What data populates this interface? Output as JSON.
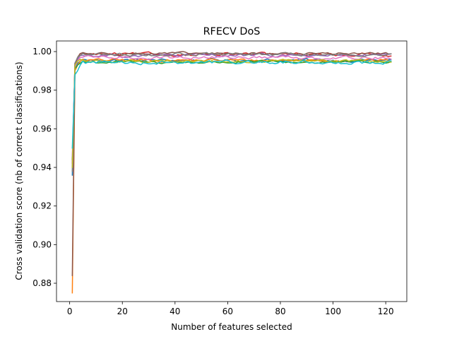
{
  "chart_data": {
    "type": "line",
    "title": "RFECV DoS",
    "xlabel": "Number of features selected",
    "ylabel": "Cross validation score (nb of correct classifications)",
    "xlim": [
      -5,
      128
    ],
    "ylim": [
      0.8705,
      1.0055
    ],
    "xticks": [
      0,
      20,
      40,
      60,
      80,
      100,
      120
    ],
    "yticks": [
      0.88,
      0.9,
      0.92,
      0.94,
      0.96,
      0.98,
      1.0
    ],
    "ytick_labels": [
      "0.88",
      "0.90",
      "0.92",
      "0.94",
      "0.96",
      "0.98",
      "1.00"
    ],
    "grid": false,
    "legend": "none",
    "x_range": [
      1,
      122
    ],
    "series": [
      {
        "color": "#1f77b4",
        "start": 0.936,
        "early": [
          0.992,
          0.994,
          0.995,
          0.996
        ],
        "plateau": 0.9955,
        "amp": 0.0007
      },
      {
        "color": "#ff7f0e",
        "start": 0.875,
        "early": [
          0.99,
          0.993,
          0.995,
          0.996
        ],
        "plateau": 0.9955,
        "amp": 0.0006
      },
      {
        "color": "#2ca02c",
        "start": 0.944,
        "early": [
          0.991,
          0.993,
          0.994,
          0.995
        ],
        "plateau": 0.9945,
        "amp": 0.0006
      },
      {
        "color": "#d62728",
        "start": 0.942,
        "early": [
          0.994,
          0.996,
          0.999,
          0.999
        ],
        "plateau": 0.9985,
        "amp": 0.0007
      },
      {
        "color": "#9467bd",
        "start": 0.94,
        "early": [
          0.994,
          0.996,
          0.998,
          0.998
        ],
        "plateau": 0.998,
        "amp": 0.0007
      },
      {
        "color": "#8c564b",
        "start": 0.884,
        "early": [
          0.993,
          0.997,
          0.999,
          0.9995
        ],
        "plateau": 0.999,
        "amp": 0.0005
      },
      {
        "color": "#e377c2",
        "start": 0.946,
        "early": [
          0.992,
          0.995,
          0.997,
          0.997
        ],
        "plateau": 0.997,
        "amp": 0.0007
      },
      {
        "color": "#7f7f7f",
        "start": 0.938,
        "early": [
          0.994,
          0.997,
          0.998,
          0.999
        ],
        "plateau": 0.9985,
        "amp": 0.0006
      },
      {
        "color": "#bcbd22",
        "start": 0.94,
        "early": [
          0.993,
          0.995,
          0.996,
          0.9955
        ],
        "plateau": 0.995,
        "amp": 0.0006
      },
      {
        "color": "#17becf",
        "start": 0.95,
        "early": [
          0.988,
          0.99,
          0.993,
          0.995
        ],
        "plateau": 0.9945,
        "amp": 0.0008
      }
    ]
  }
}
